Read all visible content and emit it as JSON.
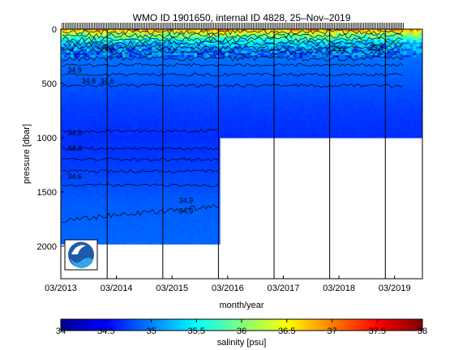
{
  "chart_data": {
    "type": "heatmap",
    "title": "WMO ID 1901650, internal ID 4828, 25–Nov–2019",
    "xlabel": "month/year",
    "ylabel": "pressure [dbar]",
    "colorbar_label": "salinity [psu]",
    "x_ticks": [
      "03/2013",
      "03/2014",
      "03/2015",
      "03/2016",
      "03/2017",
      "03/2018",
      "03/2019"
    ],
    "y_ticks": [
      "0",
      "500",
      "1000",
      "1500",
      "2000"
    ],
    "ylim": [
      0,
      2300
    ],
    "y_reversed": true,
    "xlim": [
      "2013-03",
      "2019-09"
    ],
    "colorbar_ticks": [
      "34",
      "34.5",
      "35",
      "35.5",
      "36",
      "36.5",
      "37",
      "37.5",
      "38"
    ],
    "colorbar_range": [
      34,
      38
    ],
    "colormap": [
      "#00008f",
      "#0000ff",
      "#0080ff",
      "#00ffff",
      "#80ff80",
      "#ffff00",
      "#ff8000",
      "#ff0000",
      "#800000"
    ],
    "grid": false,
    "depth_coverage": [
      {
        "from": "2013-03",
        "to": "2016-01",
        "max_pressure": 1980
      },
      {
        "from": "2016-01",
        "to": "2019-09",
        "max_pressure": 1000
      }
    ],
    "contour_labels": [
      "35.8",
      "34.9",
      "34.8",
      "34.6",
      "34.9",
      "34.8",
      "34.6",
      "34.9",
      "34.9",
      "35.2",
      "35.8"
    ],
    "logo": "NOAA"
  }
}
